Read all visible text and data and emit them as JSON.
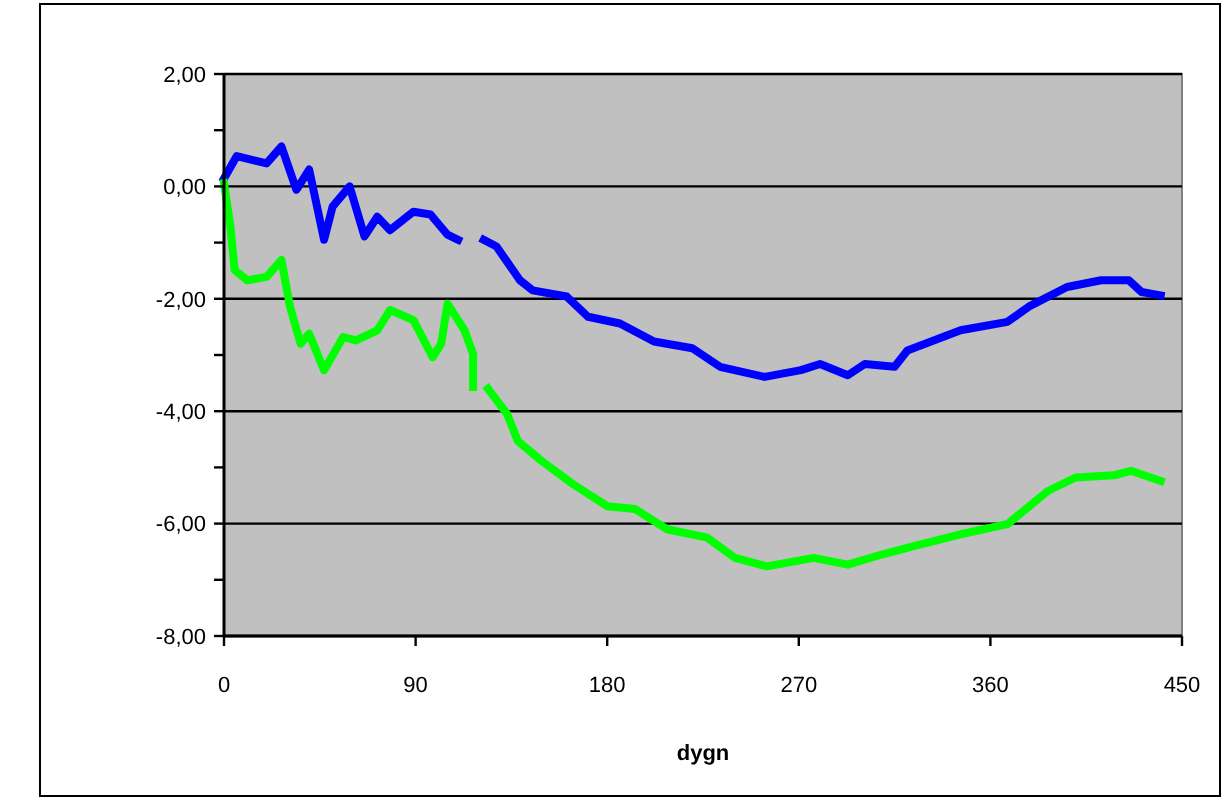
{
  "chart_data": {
    "type": "line",
    "xlabel": "dygn",
    "xlim": [
      0,
      450
    ],
    "xticks": [
      0,
      90,
      180,
      270,
      360,
      450
    ],
    "ylim": [
      -8,
      2
    ],
    "yticks": [
      {
        "value": -8,
        "label": "-8,00"
      },
      {
        "value": -7,
        "label": null
      },
      {
        "value": -6,
        "label": "-6,00"
      },
      {
        "value": -5,
        "label": null
      },
      {
        "value": -4,
        "label": "-4,00"
      },
      {
        "value": -3,
        "label": null
      },
      {
        "value": -2,
        "label": "-2,00"
      },
      {
        "value": -1,
        "label": null
      },
      {
        "value": 0,
        "label": "0,00"
      },
      {
        "value": 1,
        "label": null
      },
      {
        "value": 2,
        "label": "2,00"
      }
    ],
    "grid": "y",
    "marker": "none",
    "line_style": "solid",
    "series": [
      {
        "color": "#0000ff",
        "x": [
          0,
          6,
          20,
          27,
          34,
          40,
          47,
          51,
          59,
          66,
          72,
          78,
          89,
          97,
          105,
          110,
          116,
          122,
          128,
          139,
          145,
          161,
          171,
          186,
          202,
          220,
          233,
          254,
          271,
          280,
          293,
          301,
          315,
          321,
          346,
          368,
          378,
          396,
          412,
          425,
          431,
          440
        ],
        "values": [
          0.14,
          0.54,
          0.41,
          0.71,
          -0.06,
          0.3,
          -0.95,
          -0.36,
          0,
          -0.89,
          -0.54,
          -0.78,
          -0.45,
          -0.5,
          -0.86,
          -0.95,
          null,
          -0.95,
          -1.07,
          -1.67,
          -1.85,
          -1.96,
          -2.32,
          -2.44,
          -2.76,
          -2.88,
          -3.21,
          -3.39,
          -3.27,
          -3.16,
          -3.36,
          -3.16,
          -3.21,
          -2.92,
          -2.56,
          -2.41,
          -2.14,
          -1.79,
          -1.67,
          -1.67,
          -1.88,
          -1.94
        ]
      },
      {
        "color": "#00ff00",
        "x": [
          0,
          3,
          5,
          11,
          20,
          27,
          31,
          36,
          40,
          47,
          56,
          62,
          72,
          78,
          89,
          98,
          102,
          105,
          113,
          117,
          117,
          120,
          124,
          133,
          138,
          149,
          164,
          180,
          193,
          208,
          227,
          240,
          255,
          277,
          293,
          309,
          324,
          346,
          368,
          387,
          400,
          418,
          426,
          440
        ],
        "values": [
          0.06,
          -0.71,
          -1.49,
          -1.67,
          -1.61,
          -1.31,
          -2.14,
          -2.8,
          -2.62,
          -3.27,
          -2.68,
          -2.74,
          -2.56,
          -2.2,
          -2.38,
          -3.04,
          -2.8,
          -2.09,
          -2.56,
          -2.98,
          -3.57,
          null,
          -3.6,
          -4.05,
          -4.53,
          -4.88,
          -5.3,
          -5.69,
          -5.74,
          -6.1,
          -6.25,
          -6.61,
          -6.76,
          -6.61,
          -6.73,
          -6.55,
          -6.4,
          -6.19,
          -6.01,
          -5.42,
          -5.18,
          -5.14,
          -5.06,
          -5.24
        ]
      }
    ]
  }
}
